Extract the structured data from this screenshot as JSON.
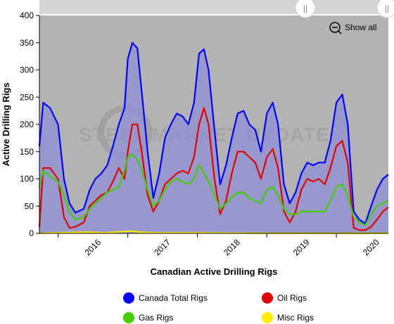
{
  "chart_data": {
    "type": "area",
    "title": "",
    "xlabel": "Canadian Active Drilling Rigs",
    "ylabel": "Active Drilling Rigs",
    "ylim": [
      0,
      400
    ],
    "yticks": [
      0,
      50,
      100,
      150,
      200,
      250,
      300,
      350,
      400
    ],
    "xlim": [
      "2015-09-25",
      "2020-09-30"
    ],
    "xtick_labels": [
      "2016",
      "2017",
      "2018",
      "2019",
      "2020"
    ],
    "legend": {
      "placement": "bottom"
    },
    "grid": false,
    "series": [
      {
        "name": "Canada Total Rigs",
        "color": "#0000ff",
        "fill": true,
        "points": [
          [
            "2015-09-25",
            160
          ],
          [
            "2015-10-15",
            240
          ],
          [
            "2015-11-20",
            230
          ],
          [
            "2016-01-01",
            200
          ],
          [
            "2016-02-01",
            100
          ],
          [
            "2016-03-01",
            55
          ],
          [
            "2016-04-01",
            38
          ],
          [
            "2016-05-15",
            45
          ],
          [
            "2016-06-15",
            80
          ],
          [
            "2016-07-15",
            100
          ],
          [
            "2016-08-15",
            110
          ],
          [
            "2016-09-15",
            125
          ],
          [
            "2016-10-15",
            160
          ],
          [
            "2016-11-15",
            200
          ],
          [
            "2016-12-15",
            230
          ],
          [
            "2017-01-01",
            320
          ],
          [
            "2017-01-25",
            350
          ],
          [
            "2017-02-20",
            340
          ],
          [
            "2017-03-15",
            260
          ],
          [
            "2017-04-15",
            150
          ],
          [
            "2017-05-15",
            65
          ],
          [
            "2017-06-15",
            110
          ],
          [
            "2017-07-15",
            175
          ],
          [
            "2017-08-15",
            200
          ],
          [
            "2017-09-15",
            220
          ],
          [
            "2017-10-15",
            215
          ],
          [
            "2017-11-15",
            200
          ],
          [
            "2017-12-15",
            240
          ],
          [
            "2018-01-10",
            330
          ],
          [
            "2018-02-05",
            338
          ],
          [
            "2018-03-01",
            300
          ],
          [
            "2018-04-01",
            190
          ],
          [
            "2018-05-01",
            90
          ],
          [
            "2018-06-01",
            125
          ],
          [
            "2018-07-01",
            175
          ],
          [
            "2018-08-01",
            220
          ],
          [
            "2018-09-01",
            225
          ],
          [
            "2018-10-01",
            200
          ],
          [
            "2018-11-01",
            190
          ],
          [
            "2018-12-01",
            150
          ],
          [
            "2019-01-01",
            220
          ],
          [
            "2019-02-01",
            240
          ],
          [
            "2019-03-01",
            200
          ],
          [
            "2019-04-01",
            90
          ],
          [
            "2019-05-01",
            55
          ],
          [
            "2019-06-01",
            75
          ],
          [
            "2019-07-01",
            110
          ],
          [
            "2019-08-01",
            130
          ],
          [
            "2019-09-01",
            125
          ],
          [
            "2019-10-01",
            130
          ],
          [
            "2019-11-01",
            130
          ],
          [
            "2019-12-01",
            170
          ],
          [
            "2020-01-01",
            240
          ],
          [
            "2020-02-01",
            255
          ],
          [
            "2020-03-01",
            200
          ],
          [
            "2020-04-01",
            40
          ],
          [
            "2020-05-01",
            25
          ],
          [
            "2020-06-01",
            18
          ],
          [
            "2020-07-01",
            50
          ],
          [
            "2020-08-01",
            80
          ],
          [
            "2020-09-01",
            100
          ],
          [
            "2020-09-30",
            108
          ]
        ]
      },
      {
        "name": "Oil Rigs",
        "color": "#dd0000",
        "fill": false,
        "points": [
          [
            "2015-09-25",
            12
          ],
          [
            "2015-10-15",
            120
          ],
          [
            "2015-11-20",
            120
          ],
          [
            "2016-01-01",
            100
          ],
          [
            "2016-02-01",
            30
          ],
          [
            "2016-03-01",
            10
          ],
          [
            "2016-04-01",
            12
          ],
          [
            "2016-05-15",
            20
          ],
          [
            "2016-06-15",
            50
          ],
          [
            "2016-07-15",
            60
          ],
          [
            "2016-08-15",
            70
          ],
          [
            "2016-09-15",
            75
          ],
          [
            "2016-10-15",
            95
          ],
          [
            "2016-11-15",
            120
          ],
          [
            "2016-12-15",
            100
          ],
          [
            "2017-01-01",
            150
          ],
          [
            "2017-01-25",
            200
          ],
          [
            "2017-02-20",
            200
          ],
          [
            "2017-03-15",
            150
          ],
          [
            "2017-04-15",
            70
          ],
          [
            "2017-05-15",
            40
          ],
          [
            "2017-06-15",
            60
          ],
          [
            "2017-07-15",
            90
          ],
          [
            "2017-08-15",
            100
          ],
          [
            "2017-09-15",
            110
          ],
          [
            "2017-10-15",
            115
          ],
          [
            "2017-11-15",
            110
          ],
          [
            "2017-12-15",
            140
          ],
          [
            "2018-01-10",
            200
          ],
          [
            "2018-02-05",
            230
          ],
          [
            "2018-03-01",
            200
          ],
          [
            "2018-04-01",
            100
          ],
          [
            "2018-05-01",
            35
          ],
          [
            "2018-06-01",
            60
          ],
          [
            "2018-07-01",
            110
          ],
          [
            "2018-08-01",
            150
          ],
          [
            "2018-09-01",
            150
          ],
          [
            "2018-10-01",
            140
          ],
          [
            "2018-11-01",
            130
          ],
          [
            "2018-12-01",
            100
          ],
          [
            "2019-01-01",
            140
          ],
          [
            "2019-02-01",
            155
          ],
          [
            "2019-03-01",
            120
          ],
          [
            "2019-04-01",
            40
          ],
          [
            "2019-05-01",
            20
          ],
          [
            "2019-06-01",
            40
          ],
          [
            "2019-07-01",
            80
          ],
          [
            "2019-08-01",
            100
          ],
          [
            "2019-09-01",
            95
          ],
          [
            "2019-10-01",
            100
          ],
          [
            "2019-11-01",
            90
          ],
          [
            "2019-12-01",
            120
          ],
          [
            "2020-01-01",
            160
          ],
          [
            "2020-02-01",
            170
          ],
          [
            "2020-03-01",
            130
          ],
          [
            "2020-04-01",
            10
          ],
          [
            "2020-05-01",
            6
          ],
          [
            "2020-06-01",
            6
          ],
          [
            "2020-07-01",
            12
          ],
          [
            "2020-08-01",
            25
          ],
          [
            "2020-09-01",
            40
          ],
          [
            "2020-09-30",
            48
          ]
        ]
      },
      {
        "name": "Gas Rigs",
        "color": "#44cc00",
        "fill": false,
        "points": [
          [
            "2015-09-25",
            85
          ],
          [
            "2015-10-15",
            115
          ],
          [
            "2015-11-20",
            105
          ],
          [
            "2016-01-01",
            95
          ],
          [
            "2016-02-01",
            70
          ],
          [
            "2016-03-01",
            40
          ],
          [
            "2016-04-01",
            25
          ],
          [
            "2016-05-15",
            30
          ],
          [
            "2016-06-15",
            45
          ],
          [
            "2016-07-15",
            55
          ],
          [
            "2016-08-15",
            65
          ],
          [
            "2016-09-15",
            75
          ],
          [
            "2016-10-15",
            80
          ],
          [
            "2016-11-15",
            85
          ],
          [
            "2016-12-15",
            115
          ],
          [
            "2017-01-01",
            140
          ],
          [
            "2017-01-25",
            145
          ],
          [
            "2017-02-20",
            135
          ],
          [
            "2017-03-15",
            115
          ],
          [
            "2017-04-15",
            80
          ],
          [
            "2017-05-15",
            50
          ],
          [
            "2017-06-15",
            60
          ],
          [
            "2017-07-15",
            80
          ],
          [
            "2017-08-15",
            95
          ],
          [
            "2017-09-15",
            100
          ],
          [
            "2017-10-15",
            95
          ],
          [
            "2017-11-15",
            90
          ],
          [
            "2017-12-15",
            100
          ],
          [
            "2018-01-10",
            125
          ],
          [
            "2018-02-05",
            110
          ],
          [
            "2018-03-01",
            95
          ],
          [
            "2018-04-01",
            70
          ],
          [
            "2018-05-01",
            45
          ],
          [
            "2018-06-01",
            55
          ],
          [
            "2018-07-01",
            65
          ],
          [
            "2018-08-01",
            75
          ],
          [
            "2018-09-01",
            75
          ],
          [
            "2018-10-01",
            65
          ],
          [
            "2018-11-01",
            60
          ],
          [
            "2018-12-01",
            55
          ],
          [
            "2019-01-01",
            80
          ],
          [
            "2019-02-01",
            85
          ],
          [
            "2019-03-01",
            70
          ],
          [
            "2019-04-01",
            45
          ],
          [
            "2019-05-01",
            35
          ],
          [
            "2019-06-01",
            35
          ],
          [
            "2019-07-01",
            40
          ],
          [
            "2019-08-01",
            40
          ],
          [
            "2019-09-01",
            40
          ],
          [
            "2019-10-01",
            40
          ],
          [
            "2019-11-01",
            40
          ],
          [
            "2019-12-01",
            60
          ],
          [
            "2020-01-01",
            85
          ],
          [
            "2020-02-01",
            90
          ],
          [
            "2020-03-01",
            70
          ],
          [
            "2020-04-01",
            30
          ],
          [
            "2020-05-01",
            20
          ],
          [
            "2020-06-01",
            15
          ],
          [
            "2020-07-01",
            35
          ],
          [
            "2020-08-01",
            50
          ],
          [
            "2020-09-01",
            55
          ],
          [
            "2020-09-30",
            60
          ]
        ]
      },
      {
        "name": "Misc Rigs",
        "color": "#ffee00",
        "fill": false,
        "points": [
          [
            "2015-09-25",
            0
          ],
          [
            "2016-01-01",
            1
          ],
          [
            "2016-06-01",
            2
          ],
          [
            "2016-09-01",
            1
          ],
          [
            "2016-12-01",
            3
          ],
          [
            "2017-01-25",
            4
          ],
          [
            "2017-03-01",
            2
          ],
          [
            "2017-06-01",
            1
          ],
          [
            "2018-01-01",
            1
          ],
          [
            "2019-01-01",
            0
          ],
          [
            "2020-01-01",
            0
          ],
          [
            "2020-09-30",
            0
          ]
        ]
      }
    ]
  },
  "ui": {
    "watermark": "STEEL MARKET UPDATE",
    "show_all_label": "Show all",
    "navigator_grip": "||"
  }
}
